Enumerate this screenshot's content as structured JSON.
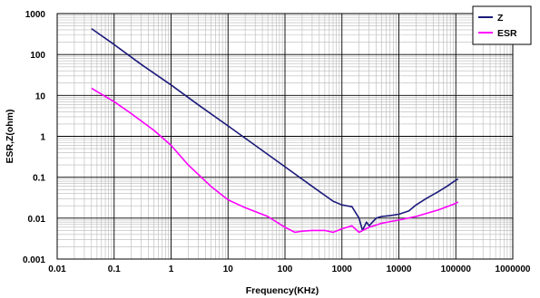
{
  "chart_data": {
    "type": "line",
    "xlabel": "Frequency(KHz)",
    "ylabel": "ESR,Z(ohm)",
    "x_scale": "log",
    "y_scale": "log",
    "xlim": [
      0.01,
      1000000
    ],
    "ylim": [
      0.001,
      1000
    ],
    "x_ticks": [
      "0.01",
      "0.1",
      "1",
      "10",
      "100",
      "1000",
      "10000",
      "100000",
      "1000000"
    ],
    "y_ticks": [
      "1000",
      "100",
      "10",
      "1",
      "0.1",
      "0.01",
      "0.001"
    ],
    "grid": true,
    "legend_position": "top-right",
    "series": [
      {
        "name": "Z",
        "color": "#1a1a7a",
        "x": [
          0.04,
          0.1,
          0.3,
          1,
          3,
          10,
          30,
          100,
          300,
          700,
          1000,
          1500,
          2000,
          2300,
          2700,
          3000,
          4000,
          5000,
          7000,
          10000,
          15000,
          20000,
          30000,
          50000,
          70000,
          100000,
          110000
        ],
        "y": [
          430,
          175,
          57,
          18,
          5.9,
          1.8,
          0.6,
          0.18,
          0.06,
          0.026,
          0.021,
          0.019,
          0.01,
          0.005,
          0.008,
          0.0065,
          0.01,
          0.011,
          0.0115,
          0.0125,
          0.015,
          0.021,
          0.03,
          0.045,
          0.06,
          0.085,
          0.09
        ]
      },
      {
        "name": "ESR",
        "color": "#ff00ff",
        "x": [
          0.04,
          0.1,
          0.2,
          0.5,
          1,
          2,
          5,
          10,
          20,
          50,
          100,
          150,
          200,
          300,
          500,
          700,
          1000,
          1500,
          2000,
          3000,
          5000,
          10000,
          20000,
          50000,
          100000,
          110000
        ],
        "y": [
          15,
          7,
          3.6,
          1.4,
          0.6,
          0.2,
          0.06,
          0.028,
          0.018,
          0.011,
          0.006,
          0.0045,
          0.0048,
          0.005,
          0.005,
          0.0045,
          0.0055,
          0.0065,
          0.0045,
          0.006,
          0.0075,
          0.009,
          0.011,
          0.016,
          0.023,
          0.025
        ]
      }
    ]
  }
}
